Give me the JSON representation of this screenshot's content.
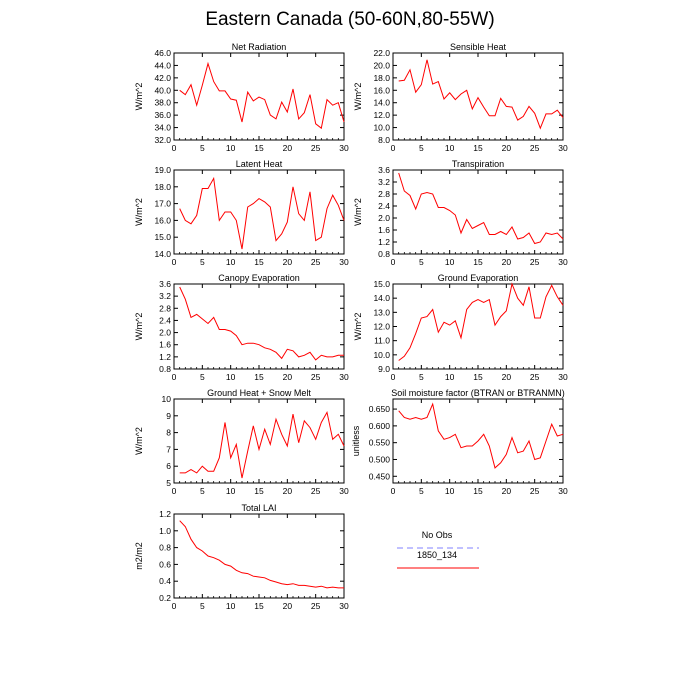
{
  "title": "Eastern Canada (50-60N,80-55W)",
  "legend": {
    "items": [
      {
        "label": "No Obs",
        "color": "#8080ff",
        "dashed": true
      },
      {
        "label": "1850_134",
        "color": "#ff0000",
        "dashed": false
      }
    ]
  },
  "chart_data": [
    {
      "type": "line",
      "title": "Net Radiation",
      "ylabel": "W/m^2",
      "xlim": [
        0,
        30
      ],
      "ylim": [
        32.0,
        46.0
      ],
      "xticks": [
        "0",
        "5",
        "10",
        "15",
        "20",
        "25",
        "30"
      ],
      "yticks": [
        "32.0",
        "34.0",
        "36.0",
        "38.0",
        "40.0",
        "42.0",
        "44.0",
        "46.0"
      ],
      "series": [
        {
          "color": "#ff0000",
          "x": [
            1,
            2,
            3,
            4,
            5,
            6,
            7,
            8,
            9,
            10,
            11,
            12,
            13,
            14,
            15,
            16,
            17,
            18,
            19,
            20,
            21,
            22,
            23,
            24,
            25,
            26,
            27,
            28,
            29,
            30
          ],
          "values": [
            40.0,
            39.3,
            40.9,
            37.6,
            40.8,
            44.3,
            41.4,
            39.9,
            39.9,
            38.6,
            38.4,
            34.9,
            39.7,
            38.3,
            38.9,
            38.5,
            36.0,
            35.4,
            38.1,
            36.5,
            40.2,
            35.4,
            36.4,
            39.3,
            34.6,
            33.9,
            38.5,
            37.6,
            38.0,
            34.9
          ]
        }
      ]
    },
    {
      "type": "line",
      "title": "Sensible Heat",
      "ylabel": "W/m^2",
      "xlim": [
        0,
        30
      ],
      "ylim": [
        8.0,
        22.0
      ],
      "xticks": [
        "0",
        "5",
        "10",
        "15",
        "20",
        "25",
        "30"
      ],
      "yticks": [
        "8.0",
        "10.0",
        "12.0",
        "14.0",
        "16.0",
        "18.0",
        "20.0",
        "22.0"
      ],
      "series": [
        {
          "color": "#ff0000",
          "x": [
            1,
            2,
            3,
            4,
            5,
            6,
            7,
            8,
            9,
            10,
            11,
            12,
            13,
            14,
            15,
            16,
            17,
            18,
            19,
            20,
            21,
            22,
            23,
            24,
            25,
            26,
            27,
            28,
            29,
            30
          ],
          "values": [
            17.5,
            17.6,
            19.3,
            15.7,
            16.9,
            20.9,
            17.0,
            17.4,
            14.6,
            15.6,
            14.5,
            15.4,
            16.0,
            13.0,
            14.8,
            13.3,
            11.9,
            11.9,
            14.7,
            13.4,
            13.3,
            11.2,
            11.8,
            13.4,
            12.3,
            9.9,
            12.2,
            12.2,
            12.8,
            11.6
          ]
        }
      ]
    },
    {
      "type": "line",
      "title": "Latent Heat",
      "ylabel": "W/m^2",
      "xlim": [
        0,
        30
      ],
      "ylim": [
        14.0,
        19.0
      ],
      "xticks": [
        "0",
        "5",
        "10",
        "15",
        "20",
        "25",
        "30"
      ],
      "yticks": [
        "14.0",
        "15.0",
        "16.0",
        "17.0",
        "18.0",
        "19.0"
      ],
      "series": [
        {
          "color": "#ff0000",
          "x": [
            1,
            2,
            3,
            4,
            5,
            6,
            7,
            8,
            9,
            10,
            11,
            12,
            13,
            14,
            15,
            16,
            17,
            18,
            19,
            20,
            21,
            22,
            23,
            24,
            25,
            26,
            27,
            28,
            29,
            30
          ],
          "values": [
            16.7,
            16.0,
            15.8,
            16.3,
            17.9,
            17.9,
            18.5,
            16.0,
            16.5,
            16.5,
            16.0,
            14.3,
            16.8,
            17.0,
            17.3,
            17.1,
            16.8,
            14.8,
            15.2,
            15.9,
            18.0,
            16.4,
            16.0,
            17.7,
            14.8,
            15.0,
            16.7,
            17.5,
            16.9,
            16.0
          ]
        }
      ]
    },
    {
      "type": "line",
      "title": "Transpiration",
      "ylabel": "W/m^2",
      "xlim": [
        0,
        30
      ],
      "ylim": [
        0.8,
        3.6
      ],
      "xticks": [
        "0",
        "5",
        "10",
        "15",
        "20",
        "25",
        "30"
      ],
      "yticks": [
        "0.8",
        "1.2",
        "1.6",
        "2.0",
        "2.4",
        "2.8",
        "3.2",
        "3.6"
      ],
      "series": [
        {
          "color": "#ff0000",
          "x": [
            1,
            2,
            3,
            4,
            5,
            6,
            7,
            8,
            9,
            10,
            11,
            12,
            13,
            14,
            15,
            16,
            17,
            18,
            19,
            20,
            21,
            22,
            23,
            24,
            25,
            26,
            27,
            28,
            29,
            30
          ],
          "values": [
            3.5,
            2.9,
            2.75,
            2.3,
            2.8,
            2.85,
            2.8,
            2.35,
            2.35,
            2.25,
            2.1,
            1.5,
            1.95,
            1.65,
            1.75,
            1.85,
            1.45,
            1.45,
            1.55,
            1.45,
            1.7,
            1.3,
            1.35,
            1.5,
            1.15,
            1.2,
            1.5,
            1.45,
            1.5,
            1.3
          ]
        }
      ]
    },
    {
      "type": "line",
      "title": "Canopy Evaporation",
      "ylabel": "W/m^2",
      "xlim": [
        0,
        30
      ],
      "ylim": [
        0.8,
        3.6
      ],
      "xticks": [
        "0",
        "5",
        "10",
        "15",
        "20",
        "25",
        "30"
      ],
      "yticks": [
        "0.8",
        "1.2",
        "1.6",
        "2.0",
        "2.4",
        "2.8",
        "3.2",
        "3.6"
      ],
      "series": [
        {
          "color": "#ff0000",
          "x": [
            1,
            2,
            3,
            4,
            5,
            6,
            7,
            8,
            9,
            10,
            11,
            12,
            13,
            14,
            15,
            16,
            17,
            18,
            19,
            20,
            21,
            22,
            23,
            24,
            25,
            26,
            27,
            28,
            29,
            30
          ],
          "values": [
            3.5,
            3.1,
            2.5,
            2.6,
            2.45,
            2.3,
            2.5,
            2.1,
            2.1,
            2.05,
            1.9,
            1.6,
            1.65,
            1.65,
            1.6,
            1.5,
            1.45,
            1.35,
            1.15,
            1.45,
            1.4,
            1.2,
            1.25,
            1.35,
            1.1,
            1.25,
            1.2,
            1.2,
            1.25,
            1.25
          ]
        }
      ]
    },
    {
      "type": "line",
      "title": "Ground Evaporation",
      "ylabel": "W/m^2",
      "xlim": [
        0,
        30
      ],
      "ylim": [
        9.0,
        15.0
      ],
      "xticks": [
        "0",
        "5",
        "10",
        "15",
        "20",
        "25",
        "30"
      ],
      "yticks": [
        "9.0",
        "10.0",
        "11.0",
        "12.0",
        "13.0",
        "14.0",
        "15.0"
      ],
      "series": [
        {
          "color": "#ff0000",
          "x": [
            1,
            2,
            3,
            4,
            5,
            6,
            7,
            8,
            9,
            10,
            11,
            12,
            13,
            14,
            15,
            16,
            17,
            18,
            19,
            20,
            21,
            22,
            23,
            24,
            25,
            26,
            27,
            28,
            29,
            30
          ],
          "values": [
            9.6,
            9.9,
            10.5,
            11.5,
            12.6,
            12.7,
            13.2,
            11.6,
            12.3,
            12.1,
            12.4,
            11.2,
            13.2,
            13.7,
            13.9,
            13.7,
            13.9,
            12.1,
            12.7,
            13.1,
            15.0,
            14.0,
            13.5,
            14.8,
            12.6,
            12.6,
            14.1,
            14.9,
            14.1,
            13.5
          ]
        }
      ]
    },
    {
      "type": "line",
      "title": "Ground Heat + Snow Melt",
      "ylabel": "W/m^2",
      "xlim": [
        0,
        30
      ],
      "ylim": [
        5,
        10
      ],
      "xticks": [
        "0",
        "5",
        "10",
        "15",
        "20",
        "25",
        "30"
      ],
      "yticks": [
        "5",
        "6",
        "7",
        "8",
        "9",
        "10"
      ],
      "series": [
        {
          "color": "#ff0000",
          "x": [
            1,
            2,
            3,
            4,
            5,
            6,
            7,
            8,
            9,
            10,
            11,
            12,
            13,
            14,
            15,
            16,
            17,
            18,
            19,
            20,
            21,
            22,
            23,
            24,
            25,
            26,
            27,
            28,
            29,
            30
          ],
          "values": [
            5.6,
            5.6,
            5.8,
            5.6,
            6.0,
            5.7,
            5.7,
            6.5,
            8.6,
            6.5,
            7.3,
            5.3,
            6.9,
            8.4,
            7.0,
            8.2,
            7.3,
            8.8,
            7.9,
            7.2,
            9.1,
            7.4,
            8.7,
            8.3,
            7.6,
            8.6,
            9.2,
            7.6,
            7.9,
            7.2
          ]
        }
      ]
    },
    {
      "type": "line",
      "title": "Soil moisture factor (BTRAN or BTRANMN)",
      "ylabel": "unitless",
      "xlim": [
        0,
        30
      ],
      "ylim": [
        0.43,
        0.68
      ],
      "xticks": [
        "0",
        "5",
        "10",
        "15",
        "20",
        "25",
        "30"
      ],
      "yticks": [
        "0.450",
        "0.500",
        "0.550",
        "0.600",
        "0.650"
      ],
      "series": [
        {
          "color": "#ff0000",
          "x": [
            1,
            2,
            3,
            4,
            5,
            6,
            7,
            8,
            9,
            10,
            11,
            12,
            13,
            14,
            15,
            16,
            17,
            18,
            19,
            20,
            21,
            22,
            23,
            24,
            25,
            26,
            27,
            28,
            29,
            30
          ],
          "values": [
            0.645,
            0.625,
            0.62,
            0.625,
            0.62,
            0.625,
            0.665,
            0.585,
            0.56,
            0.565,
            0.575,
            0.535,
            0.54,
            0.54,
            0.555,
            0.575,
            0.54,
            0.475,
            0.49,
            0.515,
            0.565,
            0.52,
            0.525,
            0.555,
            0.5,
            0.505,
            0.555,
            0.605,
            0.57,
            0.575
          ]
        }
      ]
    },
    {
      "type": "line",
      "title": "Total LAI",
      "ylabel": "m2/m2",
      "xlim": [
        0,
        30
      ],
      "ylim": [
        0.2,
        1.2
      ],
      "xticks": [
        "0",
        "5",
        "10",
        "15",
        "20",
        "25",
        "30"
      ],
      "yticks": [
        "0.2",
        "0.4",
        "0.6",
        "0.8",
        "1.0",
        "1.2"
      ],
      "series": [
        {
          "color": "#ff0000",
          "x": [
            1,
            2,
            3,
            4,
            5,
            6,
            7,
            8,
            9,
            10,
            11,
            12,
            13,
            14,
            15,
            16,
            17,
            18,
            19,
            20,
            21,
            22,
            23,
            24,
            25,
            26,
            27,
            28,
            29,
            30
          ],
          "values": [
            1.12,
            1.05,
            0.9,
            0.8,
            0.76,
            0.7,
            0.68,
            0.65,
            0.6,
            0.58,
            0.53,
            0.5,
            0.49,
            0.46,
            0.45,
            0.44,
            0.41,
            0.39,
            0.37,
            0.36,
            0.37,
            0.35,
            0.35,
            0.34,
            0.33,
            0.34,
            0.32,
            0.33,
            0.32,
            0.32
          ]
        }
      ]
    }
  ]
}
